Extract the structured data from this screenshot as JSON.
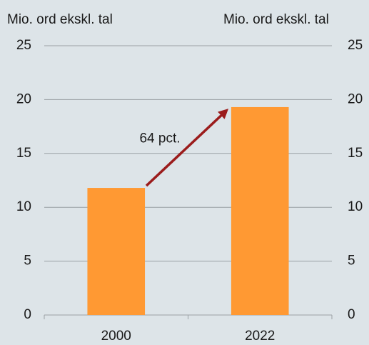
{
  "chart_data": {
    "type": "bar",
    "y_label": "Mio. ord ekskl. tal",
    "y2_label": "Mio. ord ekskl. tal",
    "categories": [
      "2000",
      "2022"
    ],
    "values": [
      11.8,
      19.3
    ],
    "color": "#ff9933",
    "ylim": [
      0,
      25
    ],
    "yticks": [
      0,
      5,
      10,
      15,
      20,
      25
    ],
    "y2lim": [
      0,
      25
    ],
    "y2ticks": [
      0,
      5,
      10,
      15,
      20,
      25
    ],
    "grid": true,
    "annotation": "64 pct.",
    "annotation_color": "#9b1c1c"
  }
}
